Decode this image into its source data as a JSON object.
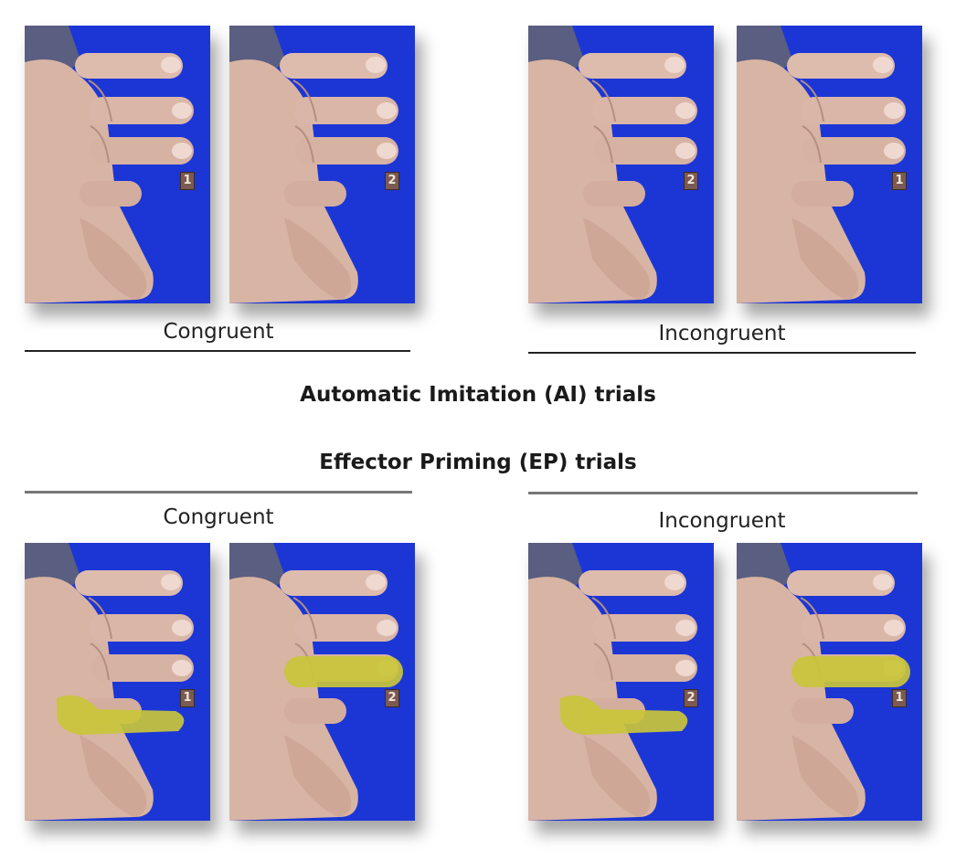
{
  "sections": {
    "ai": {
      "heading": "Automatic Imitation (AI) trials",
      "congruent_label": "Congruent",
      "incongruent_label": "Incongruent",
      "panels": [
        {
          "number": "1",
          "highlight": "none"
        },
        {
          "number": "2",
          "highlight": "none"
        },
        {
          "number": "2",
          "highlight": "none"
        },
        {
          "number": "1",
          "highlight": "none"
        }
      ]
    },
    "ep": {
      "heading": "Effector Priming (EP) trials",
      "congruent_label": "Congruent",
      "incongruent_label": "Incongruent",
      "panels": [
        {
          "number": "1",
          "highlight": "ring-finger"
        },
        {
          "number": "2",
          "highlight": "middle-finger"
        },
        {
          "number": "2",
          "highlight": "ring-finger"
        },
        {
          "number": "1",
          "highlight": "middle-finger"
        }
      ]
    }
  },
  "colors": {
    "background_blue": "#1c36d6",
    "highlight_yellow": "#c9c63a"
  }
}
